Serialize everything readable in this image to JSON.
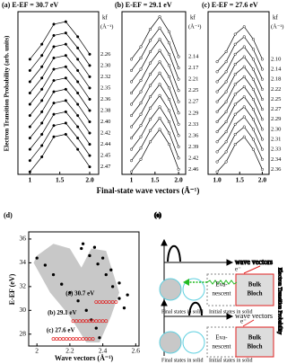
{
  "figure": {
    "ylabel": "Electron Transition Probability (arb. units)",
    "xlabel": "Final-state wave vectors (Å⁻¹)",
    "series_header": [
      "kf",
      "(Å⁻¹)"
    ]
  },
  "chart_data": [
    {
      "type": "line",
      "title": "(a) E-EF = 30.7 eV",
      "marker": "filled",
      "x": [
        1.0,
        1.2,
        1.4,
        1.6,
        1.8,
        2.0
      ],
      "xlim": [
        0.8,
        2.15
      ],
      "ylim": [
        0,
        13
      ],
      "xticks": [
        1,
        1.5,
        {
          "value": 2,
          "label": "2.0"
        }
      ],
      "series": [
        {
          "name": "2.26",
          "color": "#000000",
          "values": [
            9.2,
            10.4,
            12.0,
            12.2,
            11.0,
            9.6
          ]
        },
        {
          "name": "2.30",
          "color": "#000000",
          "values": [
            8.3,
            9.5,
            11.1,
            11.3,
            10.1,
            8.7
          ]
        },
        {
          "name": "2.32",
          "color": "#000000",
          "values": [
            7.4,
            8.6,
            10.2,
            10.4,
            9.2,
            7.8
          ]
        },
        {
          "name": "2.35",
          "color": "#000000",
          "values": [
            6.5,
            7.7,
            9.3,
            9.5,
            8.3,
            6.9
          ]
        },
        {
          "name": "2.36",
          "color": "#000000",
          "values": [
            5.6,
            6.8,
            8.4,
            8.6,
            7.4,
            6.0
          ]
        },
        {
          "name": "2.38",
          "color": "#000000",
          "values": [
            4.7,
            5.9,
            7.5,
            7.7,
            6.5,
            5.1
          ]
        },
        {
          "name": "2.40",
          "color": "#000000",
          "values": [
            3.8,
            5.0,
            6.6,
            6.8,
            5.6,
            4.2
          ]
        },
        {
          "name": "2.42",
          "color": "#000000",
          "values": [
            2.9,
            4.1,
            5.7,
            5.9,
            4.7,
            3.3
          ]
        },
        {
          "name": "2.44",
          "color": "#000000",
          "values": [
            2.0,
            3.2,
            4.8,
            5.0,
            3.8,
            2.4
          ]
        },
        {
          "name": "2.45",
          "color": "#000000",
          "values": [
            1.1,
            2.3,
            3.9,
            4.1,
            2.9,
            1.5
          ]
        },
        {
          "name": "2.47",
          "color": "#000000",
          "values": [
            0.2,
            1.4,
            3.0,
            3.2,
            2.0,
            0.6
          ]
        }
      ]
    },
    {
      "type": "line",
      "title": "(b) E-EF = 29.1 eV",
      "marker": "open",
      "x": [
        1.0,
        1.2,
        1.4,
        1.6,
        1.8,
        2.0
      ],
      "xlim": [
        0.8,
        2.15
      ],
      "ylim": [
        0,
        13
      ],
      "xticks": [
        1,
        1.5,
        {
          "value": 2,
          "label": "2.0"
        }
      ],
      "series": [
        {
          "name": "2.14",
          "color": "#000000",
          "values": [
            9.2,
            10.2,
            11.6,
            12.6,
            11.4,
            9.4
          ]
        },
        {
          "name": "2.17",
          "color": "#000000",
          "values": [
            8.3,
            9.3,
            10.7,
            11.7,
            10.5,
            8.5
          ]
        },
        {
          "name": "2.21",
          "color": "#000000",
          "values": [
            7.4,
            8.4,
            9.8,
            10.8,
            9.6,
            7.6
          ]
        },
        {
          "name": "2.25",
          "color": "#000000",
          "values": [
            6.5,
            7.5,
            8.9,
            9.9,
            8.7,
            6.7
          ]
        },
        {
          "name": "2.27",
          "color": "#000000",
          "values": [
            5.6,
            6.6,
            8.0,
            9.0,
            7.8,
            5.8
          ]
        },
        {
          "name": "2.29",
          "color": "#000000",
          "values": [
            4.7,
            5.7,
            7.1,
            8.1,
            6.9,
            4.9
          ]
        },
        {
          "name": "2.33",
          "color": "#000000",
          "values": [
            3.8,
            4.8,
            6.2,
            7.2,
            6.0,
            4.0
          ]
        },
        {
          "name": "2.36",
          "color": "#000000",
          "values": [
            2.9,
            3.9,
            5.3,
            6.3,
            5.1,
            3.1
          ]
        },
        {
          "name": "2.39",
          "color": "#000000",
          "values": [
            2.0,
            3.0,
            4.4,
            5.4,
            4.2,
            2.2
          ]
        },
        {
          "name": "2.42",
          "color": "#000000",
          "values": [
            1.1,
            2.1,
            3.5,
            4.5,
            3.3,
            1.3
          ]
        },
        {
          "name": "2.46",
          "color": "#000000",
          "values": [
            0.2,
            1.2,
            2.6,
            3.6,
            2.4,
            0.4
          ]
        }
      ]
    },
    {
      "type": "line",
      "title": "(c) E-EF = 27.6 eV",
      "marker": "open",
      "x": [
        1.0,
        1.2,
        1.4,
        1.6,
        1.8,
        2.0
      ],
      "xlim": [
        0.8,
        2.15
      ],
      "ylim": [
        0,
        13
      ],
      "xticks": [
        {
          "value": 1,
          "label": "1.0"
        },
        1.5,
        {
          "value": 2,
          "label": "2.0"
        }
      ],
      "series": [
        {
          "name": "2.10",
          "color": "#000000",
          "values": [
            9.0,
            9.8,
            11.2,
            11.8,
            10.8,
            9.2
          ]
        },
        {
          "name": "2.14",
          "color": "#000000",
          "values": [
            8.2,
            9.0,
            10.4,
            11.0,
            10.0,
            8.4
          ]
        },
        {
          "name": "2.18",
          "color": "#000000",
          "values": [
            7.4,
            8.2,
            9.6,
            10.2,
            9.2,
            7.6
          ]
        },
        {
          "name": "2.22",
          "color": "#000000",
          "values": [
            6.6,
            7.4,
            8.8,
            9.4,
            8.4,
            6.8
          ]
        },
        {
          "name": "2.25",
          "color": "#000000",
          "values": [
            5.8,
            6.6,
            8.0,
            8.6,
            7.6,
            6.0
          ]
        },
        {
          "name": "2.27",
          "color": "#000000",
          "values": [
            5.0,
            5.8,
            7.2,
            7.8,
            6.8,
            5.2
          ]
        },
        {
          "name": "2.29",
          "color": "#000000",
          "values": [
            4.2,
            5.0,
            6.4,
            7.0,
            6.0,
            4.4
          ]
        },
        {
          "name": "2.30",
          "color": "#000000",
          "values": [
            3.4,
            4.2,
            5.6,
            6.2,
            5.2,
            3.6
          ]
        },
        {
          "name": "2.31",
          "color": "#000000",
          "values": [
            2.6,
            3.4,
            4.8,
            5.4,
            4.4,
            2.8
          ]
        },
        {
          "name": "2.33",
          "color": "#000000",
          "values": [
            1.8,
            2.6,
            4.0,
            4.6,
            3.6,
            2.0
          ]
        },
        {
          "name": "2.34",
          "color": "#000000",
          "values": [
            1.0,
            1.8,
            3.2,
            3.8,
            2.8,
            1.2
          ]
        },
        {
          "name": "2.36",
          "color": "#000000",
          "values": [
            0.2,
            1.0,
            2.4,
            3.0,
            2.0,
            0.4
          ]
        }
      ]
    },
    {
      "type": "scatter",
      "title": "(d)",
      "xlabel": "Wave vectors (Å⁻¹)",
      "ylabel": "E-EF (eV)",
      "xlim": [
        1.95,
        2.62
      ],
      "ylim": [
        27,
        36.6
      ],
      "xticks": [
        2,
        2.2,
        2.4,
        2.6
      ],
      "yticks": [
        28,
        30,
        32,
        34,
        36
      ],
      "region": {
        "color": "#c8c8c8",
        "x": [
          2.0,
          2.1,
          2.2,
          2.27,
          2.33,
          2.42,
          2.5,
          2.45,
          2.38,
          2.3,
          2.2,
          2.08,
          1.98
        ],
        "y": [
          34.6,
          35.6,
          35.2,
          33.6,
          35.2,
          35.0,
          31.5,
          29.5,
          27.3,
          27.3,
          29.5,
          31.5,
          34.0
        ]
      },
      "annotations": [
        "(a) 30.7 eV",
        "(b) 29.1 eV",
        "(c) 27.6 eV"
      ],
      "series": [
        {
          "color": "#000000",
          "marker": "filled",
          "x": [
            2.0,
            2.05,
            2.1,
            2.15,
            2.2,
            2.25,
            2.3,
            2.33,
            2.36,
            2.38
          ],
          "values": [
            34.4,
            33.8,
            33.0,
            32.2,
            31.5,
            30.8,
            30.0,
            29.2,
            28.5,
            27.7
          ]
        },
        {
          "color": "#000000",
          "marker": "filled",
          "x": [
            2.27,
            2.32,
            2.37,
            2.42,
            2.46,
            2.5,
            2.53
          ],
          "values": [
            35.2,
            34.6,
            33.9,
            33.0,
            32.0,
            31.0,
            30.2
          ]
        },
        {
          "color": "#000000",
          "marker": "filled",
          "x": [
            2.28,
            2.35,
            2.4,
            2.45,
            2.5,
            2.55
          ],
          "values": [
            35.6,
            35.3,
            34.4,
            33.4,
            32.3,
            31.3
          ]
        },
        {
          "color": "#e02020",
          "marker": "open",
          "x": [
            2.36,
            2.38,
            2.4,
            2.42,
            2.44,
            2.46,
            2.48
          ],
          "values": [
            30.7,
            30.7,
            30.7,
            30.7,
            30.7,
            30.7,
            30.7
          ]
        },
        {
          "color": "#e02020",
          "marker": "open",
          "x": [
            2.22,
            2.24,
            2.26,
            2.28,
            2.3,
            2.32,
            2.34,
            2.36,
            2.38,
            2.4,
            2.42
          ],
          "values": [
            29.1,
            29.1,
            29.1,
            29.1,
            29.1,
            29.1,
            29.1,
            29.1,
            29.1,
            29.1,
            29.1
          ]
        },
        {
          "color": "#e02020",
          "marker": "open",
          "x": [
            2.1,
            2.12,
            2.14,
            2.16,
            2.18,
            2.2,
            2.22,
            2.24,
            2.26,
            2.28,
            2.3,
            2.32,
            2.34
          ],
          "values": [
            27.6,
            27.6,
            27.6,
            27.6,
            27.6,
            27.6,
            27.6,
            27.6,
            27.6,
            27.6,
            27.6,
            27.6,
            27.6
          ]
        }
      ]
    }
  ],
  "diagram": {
    "label": "(e)",
    "ylabel": "Electron Transition Probability",
    "wave_vectors": "wave vectors",
    "electron": "e⁻",
    "evanescent": [
      "Eva-",
      "nescent"
    ],
    "bulk": [
      "Bulk",
      "Bloch"
    ],
    "final": "Final states in solid",
    "initial": "Initial states in solid"
  }
}
